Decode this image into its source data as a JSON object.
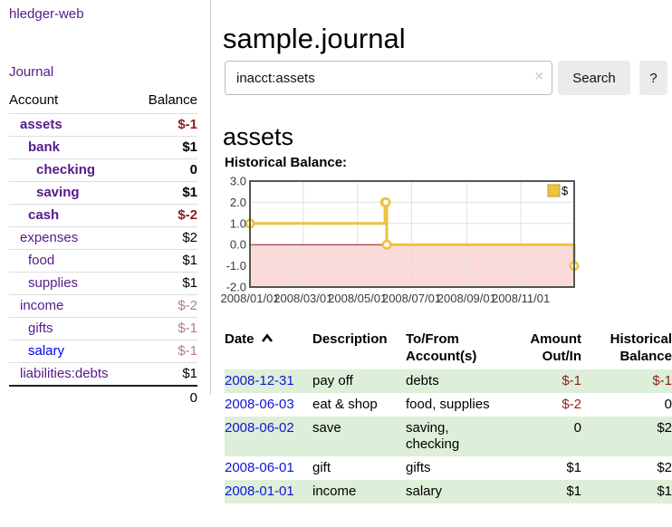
{
  "app": {
    "brand": "hledger-web",
    "nav": {
      "journal": "Journal"
    }
  },
  "sidebar": {
    "table_headers": {
      "account": "Account",
      "balance": "Balance"
    },
    "accounts": [
      {
        "name": "assets",
        "indent": 1,
        "bold": true,
        "link": "purple",
        "balance": "$-1",
        "balance_style": "neg"
      },
      {
        "name": "bank",
        "indent": 2,
        "bold": true,
        "link": "purple",
        "balance": "$1",
        "balance_style": "plain"
      },
      {
        "name": "checking",
        "indent": 3,
        "bold": true,
        "link": "purple",
        "balance": "0",
        "balance_style": "plain"
      },
      {
        "name": "saving",
        "indent": 3,
        "bold": true,
        "link": "purple",
        "balance": "$1",
        "balance_style": "plain"
      },
      {
        "name": "cash",
        "indent": 2,
        "bold": true,
        "link": "purple",
        "balance": "$-2",
        "balance_style": "neg"
      },
      {
        "name": "expenses",
        "indent": 1,
        "bold": false,
        "link": "purple",
        "balance": "$2",
        "balance_style": "plain"
      },
      {
        "name": "food",
        "indent": 2,
        "bold": false,
        "link": "purple",
        "balance": "$1",
        "balance_style": "plain"
      },
      {
        "name": "supplies",
        "indent": 2,
        "bold": false,
        "link": "purple",
        "balance": "$1",
        "balance_style": "plain"
      },
      {
        "name": "income",
        "indent": 1,
        "bold": false,
        "link": "purple",
        "balance": "$-2",
        "balance_style": "soft"
      },
      {
        "name": "gifts",
        "indent": 2,
        "bold": false,
        "link": "purple",
        "balance": "$-1",
        "balance_style": "soft"
      },
      {
        "name": "salary",
        "indent": 2,
        "bold": false,
        "link": "blue",
        "balance": "$-1",
        "balance_style": "soft"
      },
      {
        "name": "liabilities:debts",
        "indent": 1,
        "bold": false,
        "link": "purple",
        "balance": "$1",
        "balance_style": "plain"
      }
    ],
    "total": "0"
  },
  "main": {
    "title": "sample.journal",
    "search": {
      "value": "inacct:assets",
      "clear": "×",
      "button": "Search",
      "help": "?"
    },
    "heading": "assets",
    "chart_label": "Historical Balance:"
  },
  "chart_data": {
    "type": "line",
    "step": true,
    "title": "Historical Balance",
    "series": [
      {
        "name": "$",
        "color": "#EDC240",
        "points": [
          [
            "2008-01-01",
            1
          ],
          [
            "2008-06-01",
            2
          ],
          [
            "2008-06-02",
            2
          ],
          [
            "2008-06-03",
            0
          ],
          [
            "2008-12-31",
            -1
          ]
        ]
      }
    ],
    "x_ticks": [
      "2008/01/01",
      "2008/03/01",
      "2008/05/01",
      "2008/07/01",
      "2008/09/01",
      "2008/11/01"
    ],
    "y_ticks": [
      "3.0",
      "2.0",
      "1.0",
      "0.0",
      "-1.0",
      "-2.0"
    ],
    "ylim": [
      -2,
      3
    ],
    "grid": true,
    "negative_fill": "#fbdada",
    "zero_line_color": "#8b1a1a",
    "grid_color": "#e0e0e0",
    "border_color": "#555555",
    "legend": {
      "label": "$",
      "position": "top-right"
    }
  },
  "register": {
    "headers": [
      {
        "label": "Date",
        "sort": "asc"
      },
      {
        "label": "Description"
      },
      {
        "label": "To/From Account(s)"
      },
      {
        "label": "Amount Out/In"
      },
      {
        "label": "Historical Balance"
      }
    ],
    "rows": [
      {
        "date": "2008-12-31",
        "description": "pay off",
        "accounts": "debts",
        "amount": "$-1",
        "amount_neg": true,
        "balance": "$-1",
        "balance_neg": true
      },
      {
        "date": "2008-06-03",
        "description": "eat & shop",
        "accounts": "food, supplies",
        "amount": "$-2",
        "amount_neg": true,
        "balance": "0",
        "balance_neg": false
      },
      {
        "date": "2008-06-02",
        "description": "save",
        "accounts": "saving, checking",
        "amount": "0",
        "amount_neg": false,
        "balance": "$2",
        "balance_neg": false
      },
      {
        "date": "2008-06-01",
        "description": "gift",
        "accounts": "gifts",
        "amount": "$1",
        "amount_neg": false,
        "balance": "$2",
        "balance_neg": false
      },
      {
        "date": "2008-01-01",
        "description": "income",
        "accounts": "salary",
        "amount": "$1",
        "amount_neg": false,
        "balance": "$1",
        "balance_neg": false
      }
    ]
  }
}
